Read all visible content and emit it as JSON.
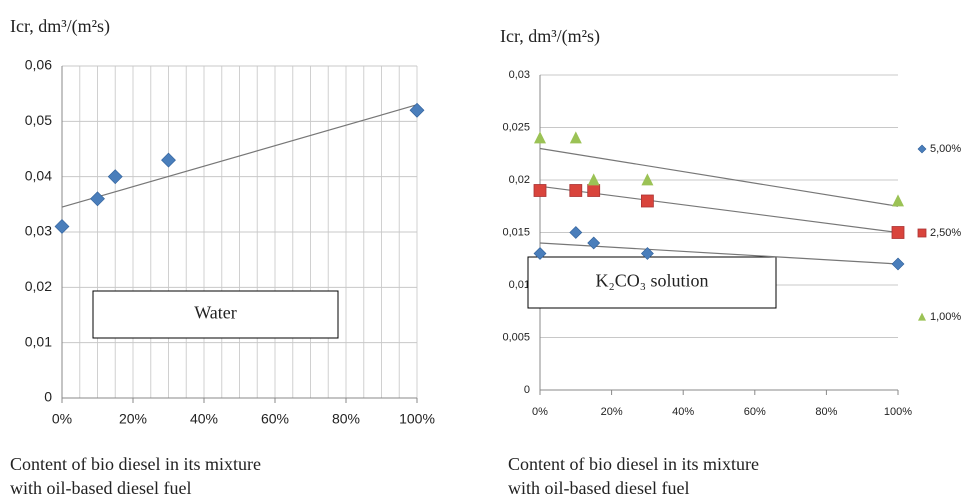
{
  "chart_data": [
    {
      "type": "scatter",
      "ylabel": "Icr, dm³/(m²s)",
      "annotation": "Water",
      "xlabel": [
        "Content of bio diesel in its mixture",
        "with oil-based diesel fuel"
      ],
      "x": [
        0,
        10,
        15,
        30,
        100
      ],
      "series": [
        {
          "name": null,
          "color": "#4a7ebb",
          "marker": "diamond",
          "values": [
            0.031,
            0.036,
            0.04,
            0.043,
            0.052
          ],
          "trend": {
            "x": [
              0,
              100
            ],
            "values": [
              0.0345,
              0.053
            ]
          }
        }
      ],
      "xlim": [
        0,
        100
      ],
      "xticks": [
        {
          "value": 0,
          "label": "0%"
        },
        {
          "value": 20,
          "label": "20%"
        },
        {
          "value": 40,
          "label": "40%"
        },
        {
          "value": 60,
          "label": "60%"
        },
        {
          "value": 80,
          "label": "80%"
        },
        {
          "value": 100,
          "label": "100%"
        }
      ],
      "x_minor_grid_step": 5,
      "ylim": [
        0,
        0.06
      ],
      "yticks": [
        0,
        {
          "value": 0.01,
          "label": "0,01"
        },
        {
          "value": 0.02,
          "label": "0,02"
        },
        {
          "value": 0.03,
          "label": "0,03"
        },
        {
          "value": 0.04,
          "label": "0,04"
        },
        {
          "value": 0.05,
          "label": "0,05"
        },
        {
          "value": 0.06,
          "label": "0,06"
        }
      ],
      "grid": true,
      "legend": null
    },
    {
      "type": "scatter",
      "ylabel": "Icr, dm³/(m²s)",
      "annotation": "K₂CO₃ solution",
      "xlabel": [
        "Content of bio diesel in its mixture",
        "with oil-based diesel fuel"
      ],
      "x": [
        0,
        10,
        15,
        30,
        100
      ],
      "series": [
        {
          "name": "5,00%",
          "color": "#4a7ebb",
          "marker": "diamond",
          "values": [
            0.013,
            0.015,
            0.014,
            0.013,
            0.012
          ],
          "trend": {
            "x": [
              0,
              100
            ],
            "values": [
              0.014,
              0.012
            ]
          }
        },
        {
          "name": "2,50%",
          "color": "#d9443c",
          "marker": "square",
          "values": [
            0.019,
            0.019,
            0.019,
            0.018,
            0.015
          ],
          "trend": {
            "x": [
              0,
              100
            ],
            "values": [
              0.0194,
              0.015
            ]
          }
        },
        {
          "name": "1,00%",
          "color": "#9bc255",
          "marker": "triangle",
          "values": [
            0.024,
            0.024,
            0.02,
            0.02,
            0.018
          ],
          "trend": {
            "x": [
              0,
              100
            ],
            "values": [
              0.023,
              0.0175
            ]
          }
        }
      ],
      "xlim": [
        0,
        100
      ],
      "xticks": [
        {
          "value": 0,
          "label": "0%"
        },
        {
          "value": 20,
          "label": "20%"
        },
        {
          "value": 40,
          "label": "40%"
        },
        {
          "value": 60,
          "label": "60%"
        },
        {
          "value": 80,
          "label": "80%"
        },
        {
          "value": 100,
          "label": "100%"
        }
      ],
      "x_minor_grid_step": null,
      "ylim": [
        0,
        0.03
      ],
      "yticks": [
        0,
        {
          "value": 0.005,
          "label": "0,005"
        },
        {
          "value": 0.01,
          "label": "0,01"
        },
        {
          "value": 0.015,
          "label": "0,015"
        },
        {
          "value": 0.02,
          "label": "0,02"
        },
        {
          "value": 0.025,
          "label": "0,025"
        },
        {
          "value": 0.03,
          "label": "0,03"
        }
      ],
      "grid": true,
      "legend": "right"
    }
  ]
}
